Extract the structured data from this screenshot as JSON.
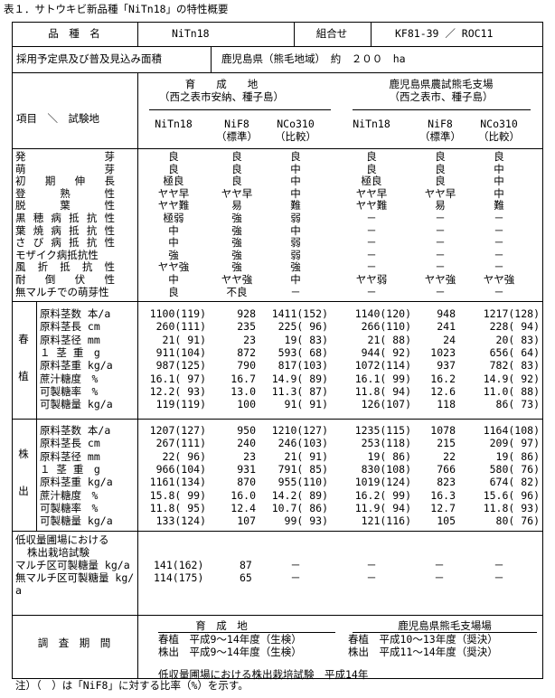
{
  "title": "表１．サトウキビ新品種「NiTn18」の特性概要",
  "header": {
    "variety_label": "品　種　名",
    "variety": "NiTn18",
    "cross_label": "組合せ",
    "cross": "KF81-39 ／ ROC11",
    "area_label": "採用予定県及び普及見込み面積",
    "area": "鹿児島県（熊毛地域）　約　２００　ha",
    "item_label": "項目　＼　試験地",
    "site1": {
      "name": "育　　成　　地",
      "sub": "（西之表市安納、種子島）"
    },
    "site2": {
      "name": "鹿児島県農試熊毛支場",
      "sub": "（西之表市、種子島）"
    },
    "cols": [
      {
        "l1": "NiTn18",
        "l2": ""
      },
      {
        "l1": "NiF8",
        "l2": "（標準）"
      },
      {
        "l1": "NCo310",
        "l2": "（比較）"
      }
    ]
  },
  "traits": [
    {
      "label": "発芽",
      "v": [
        "良",
        "良",
        "良",
        "良",
        "良",
        "良"
      ]
    },
    {
      "label": "萌芽",
      "v": [
        "良",
        "良",
        "中",
        "良",
        "良",
        "中"
      ]
    },
    {
      "label": "初期伸長",
      "v": [
        "極良",
        "良",
        "中",
        "極良",
        "良",
        "中"
      ]
    },
    {
      "label": "登熟性",
      "v": [
        "ヤヤ早",
        "ヤヤ早",
        "中",
        "ヤヤ早",
        "ヤヤ早",
        "中"
      ]
    },
    {
      "label": "脱葉性",
      "v": [
        "ヤヤ難",
        "易",
        "難",
        "ヤヤ難",
        "易",
        "難"
      ]
    },
    {
      "label": "黒穂病抵抗性",
      "v": [
        "極弱",
        "強",
        "弱",
        "－",
        "－",
        "－"
      ]
    },
    {
      "label": "葉焼病抵抗性",
      "v": [
        "中",
        "強",
        "中",
        "－",
        "－",
        "－"
      ]
    },
    {
      "label": "さび病抵抗性",
      "v": [
        "中",
        "強",
        "弱",
        "－",
        "－",
        "－"
      ]
    },
    {
      "label": "モザイク病抵抗性",
      "v": [
        "強",
        "強",
        "弱",
        "－",
        "－",
        "－"
      ]
    },
    {
      "label": "風折抵抗性",
      "v": [
        "ヤヤ強",
        "強",
        "強",
        "－",
        "－",
        "－"
      ]
    },
    {
      "label": "耐倒伏性",
      "v": [
        "中",
        "ヤヤ強",
        "中",
        "ヤヤ弱",
        "ヤヤ強",
        "ヤヤ強"
      ]
    },
    {
      "label": "無マルチでの萌芽性",
      "v": [
        "良",
        "不良",
        "－",
        "－",
        "－",
        "－"
      ]
    }
  ],
  "spring": {
    "label1": "春",
    "label2": "植",
    "rows": [
      {
        "label": "原料茎数 本/a",
        "v": [
          "1100(119)",
          "928",
          "1411(152)",
          "1140(120)",
          "948",
          "1217(128)"
        ]
      },
      {
        "label": "原料茎長 cm",
        "v": [
          "260(111)",
          "235",
          "225( 96)",
          "266(110)",
          "241",
          "228( 94)"
        ]
      },
      {
        "label": "原料茎径 mm",
        "v": [
          "21( 91)",
          "23",
          "19( 83)",
          "21( 88)",
          "24",
          "20( 83)"
        ]
      },
      {
        "label": "１ 茎 重　g",
        "v": [
          "911(104)",
          "872",
          "593( 68)",
          "944( 92)",
          "1023",
          "656( 64)"
        ]
      },
      {
        "label": "原料茎重 kg/a",
        "v": [
          "987(125)",
          "790",
          "817(103)",
          "1072(114)",
          "937",
          "782( 83)"
        ]
      },
      {
        "label": "蔗汁糖度　%",
        "v": [
          "16.1( 97)",
          "16.7",
          "14.9( 89)",
          "16.1( 99)",
          "16.2",
          "14.9( 92)"
        ]
      },
      {
        "label": "可製糖率　%",
        "v": [
          "12.2( 93)",
          "13.0",
          "11.3( 87)",
          "11.8( 94)",
          "12.6",
          "11.0( 88)"
        ]
      },
      {
        "label": "可製糖量 kg/a",
        "v": [
          "119(119)",
          "100",
          "91( 91)",
          "126(107)",
          "118",
          "86( 73)"
        ]
      }
    ]
  },
  "ratoon": {
    "label1": "株",
    "label2": "出",
    "rows": [
      {
        "label": "原料茎数 本/a",
        "v": [
          "1207(127)",
          "950",
          "1210(127)",
          "1235(115)",
          "1078",
          "1164(108)"
        ]
      },
      {
        "label": "原料茎長 cm",
        "v": [
          "267(111)",
          "240",
          "246(103)",
          "253(118)",
          "215",
          "209( 97)"
        ]
      },
      {
        "label": "原料茎径 mm",
        "v": [
          "22( 96)",
          "23",
          "21( 91)",
          "19( 86)",
          "22",
          "19( 86)"
        ]
      },
      {
        "label": "１ 茎 重　g",
        "v": [
          "966(104)",
          "931",
          "791( 85)",
          "830(108)",
          "766",
          "580( 76)"
        ]
      },
      {
        "label": "原料茎重 kg/a",
        "v": [
          "1161(134)",
          "870",
          "955(110)",
          "1019(124)",
          "823",
          "674( 82)"
        ]
      },
      {
        "label": "蔗汁糖度　%",
        "v": [
          "15.8( 99)",
          "16.0",
          "14.2( 89)",
          "16.2( 99)",
          "16.3",
          "15.6( 96)"
        ]
      },
      {
        "label": "可製糖率　%",
        "v": [
          "11.8( 95)",
          "12.4",
          "10.7( 86)",
          "11.9( 94)",
          "12.7",
          "11.8( 93)"
        ]
      },
      {
        "label": "可製糖量 kg/a",
        "v": [
          "133(124)",
          "107",
          "99( 93)",
          "121(116)",
          "105",
          "80( 76)"
        ]
      }
    ]
  },
  "lowyield": {
    "title1": "低収量圃場における",
    "title2": "株出栽培試験",
    "rows": [
      {
        "label": "マルチ区可製糖量 kg/a",
        "v": [
          "141(162)",
          "87",
          "－",
          "－",
          "－",
          "－"
        ]
      },
      {
        "label": "無マルチ区可製糖量 kg/",
        "label2": "a",
        "v": [
          "114(175)",
          "65",
          "－",
          "－",
          "－",
          "－"
        ]
      }
    ]
  },
  "period": {
    "label": "調　査　期　間",
    "site1": "育　成　地",
    "site2": "鹿児島県熊毛支場場",
    "s1": [
      "春植　平成9～14年度（生検）",
      "株出　平成9～14年度（生検）"
    ],
    "s2": [
      "春植　平成10～13年度（奨決）",
      "株出　平成11～14年度（奨決）"
    ],
    "low": "低収量圃場における株出栽培試験　平成14年"
  },
  "note": "注）（　）は「NiF8」に対する比率（%）を示す。"
}
